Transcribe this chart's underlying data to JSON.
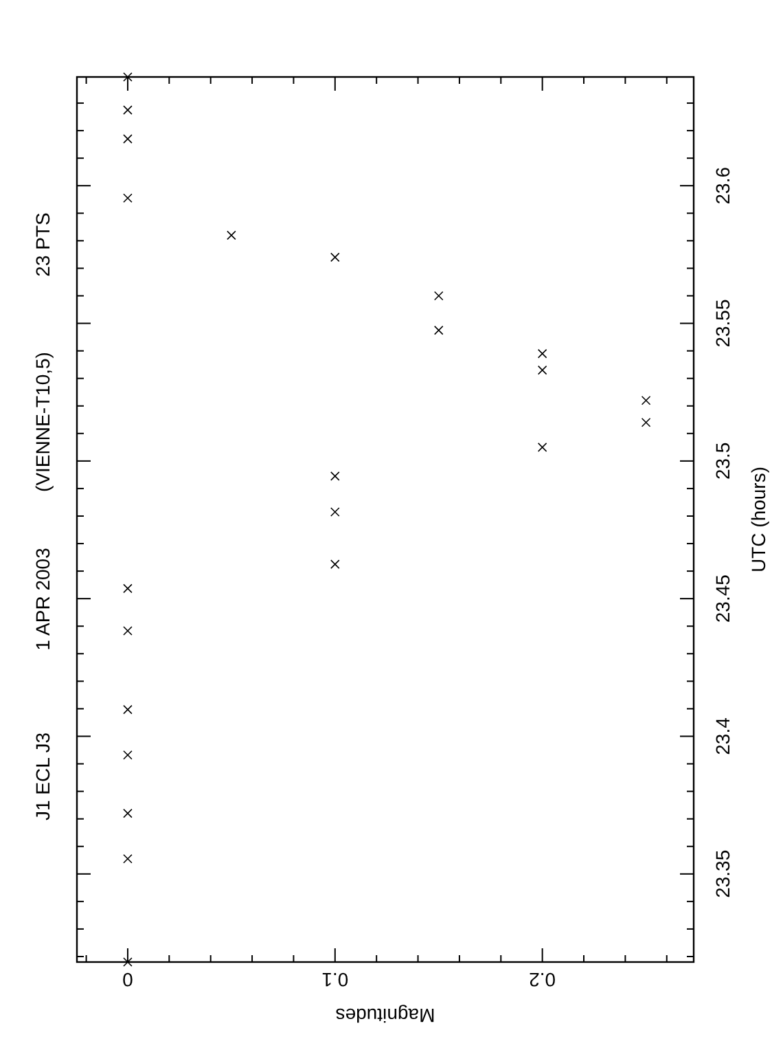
{
  "chart_data": {
    "type": "scatter",
    "title": "J1 ECL J3",
    "annotations": [
      "1 APR 2003",
      "(VIENNE-T10,5)",
      "23 PTS"
    ],
    "xlabel": "Magnitudes",
    "ylabel": "UTC (hours)",
    "x": [
      0,
      0,
      0,
      0,
      0.05,
      0.1,
      0.15,
      0.15,
      0.2,
      0.2,
      0.25,
      0.25,
      0.2,
      0.1,
      0.1,
      0.1,
      0,
      0,
      0,
      0,
      0,
      0,
      0
    ],
    "series": [
      {
        "color": "#000000",
        "values": [
          23.6395,
          23.6275,
          23.617,
          23.5955,
          23.582,
          23.574,
          23.56,
          23.5475,
          23.539,
          23.533,
          23.522,
          23.514,
          23.505,
          23.4945,
          23.4815,
          23.4625,
          23.4537,
          23.4383,
          23.4097,
          23.3932,
          23.372,
          23.3555,
          23.318
        ]
      }
    ],
    "xlim": [
      -0.0245,
      0.273
    ],
    "ylim": [
      23.318,
      23.6395
    ],
    "xticks": [
      {
        "value": -0.02,
        "label": null
      },
      0,
      {
        "value": 0.02,
        "label": null
      },
      {
        "value": 0.04,
        "label": null
      },
      {
        "value": 0.06,
        "label": null
      },
      {
        "value": 0.08,
        "label": null
      },
      0.1,
      {
        "value": 0.12,
        "label": null
      },
      {
        "value": 0.14,
        "label": null
      },
      {
        "value": 0.16,
        "label": null
      },
      {
        "value": 0.18,
        "label": null
      },
      0.2,
      {
        "value": 0.22,
        "label": null
      },
      {
        "value": 0.24,
        "label": null
      },
      {
        "value": 0.26,
        "label": null
      }
    ],
    "yticks": [
      {
        "value": 23.32,
        "label": null
      },
      {
        "value": 23.33,
        "label": null
      },
      {
        "value": 23.34,
        "label": null
      },
      23.35,
      {
        "value": 23.36,
        "label": null
      },
      {
        "value": 23.37,
        "label": null
      },
      {
        "value": 23.38,
        "label": null
      },
      {
        "value": 23.39,
        "label": null
      },
      23.4,
      {
        "value": 23.41,
        "label": null
      },
      {
        "value": 23.42,
        "label": null
      },
      {
        "value": 23.43,
        "label": null
      },
      {
        "value": 23.44,
        "label": null
      },
      23.45,
      {
        "value": 23.46,
        "label": null
      },
      {
        "value": 23.47,
        "label": null
      },
      {
        "value": 23.48,
        "label": null
      },
      {
        "value": 23.49,
        "label": null
      },
      23.5,
      {
        "value": 23.51,
        "label": null
      },
      {
        "value": 23.52,
        "label": null
      },
      {
        "value": 23.53,
        "label": null
      },
      {
        "value": 23.54,
        "label": null
      },
      23.55,
      {
        "value": 23.56,
        "label": null
      },
      {
        "value": 23.57,
        "label": null
      },
      {
        "value": 23.58,
        "label": null
      },
      {
        "value": 23.59,
        "label": null
      },
      23.6,
      {
        "value": 23.61,
        "label": null
      },
      {
        "value": 23.62,
        "label": null
      },
      {
        "value": 23.63,
        "label": null
      }
    ],
    "marker": "cross",
    "grid": false
  }
}
